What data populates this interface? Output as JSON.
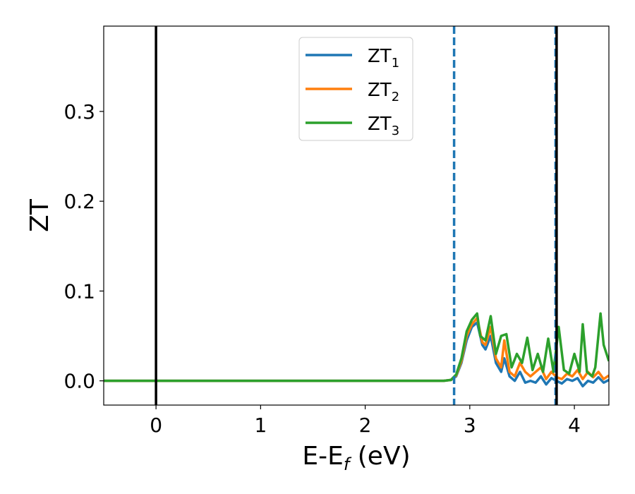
{
  "chart_data": {
    "type": "line",
    "xlabel_main": "E-E",
    "xlabel_sub": "f",
    "xlabel_unit": " (eV)",
    "ylabel": "ZT",
    "xlim": [
      -0.5,
      4.33
    ],
    "ylim": [
      -0.027,
      0.395
    ],
    "xticks": [
      0,
      1,
      2,
      3,
      4
    ],
    "xtick_labels": [
      "0",
      "1",
      "2",
      "3",
      "4"
    ],
    "yticks": [
      0.0,
      0.1,
      0.2,
      0.3
    ],
    "ytick_labels": [
      "0.0",
      "0.1",
      "0.2",
      "0.3"
    ],
    "grid": false,
    "legend_placement": "top-center",
    "series": [
      {
        "name_main": "ZT",
        "name_sub": "1",
        "color": "#1f77b4",
        "x": [
          -0.5,
          2.75,
          2.82,
          2.87,
          2.92,
          2.97,
          3.02,
          3.07,
          3.12,
          3.15,
          3.2,
          3.25,
          3.3,
          3.33,
          3.38,
          3.43,
          3.48,
          3.53,
          3.58,
          3.63,
          3.68,
          3.73,
          3.78,
          3.83,
          3.88,
          3.93,
          3.98,
          4.03,
          4.08,
          4.13,
          4.18,
          4.23,
          4.28,
          4.33
        ],
        "y": [
          0.0,
          0.0,
          0.001,
          0.005,
          0.02,
          0.045,
          0.06,
          0.065,
          0.04,
          0.035,
          0.05,
          0.02,
          0.01,
          0.025,
          0.005,
          0.0,
          0.01,
          -0.002,
          0.0,
          -0.002,
          0.005,
          -0.004,
          0.003,
          0.0,
          -0.003,
          0.002,
          0.0,
          0.003,
          -0.006,
          0.0,
          -0.002,
          0.004,
          -0.002,
          0.001
        ]
      },
      {
        "name_main": "ZT",
        "name_sub": "2",
        "color": "#ff7f0e",
        "x": [
          -0.5,
          2.75,
          2.82,
          2.87,
          2.92,
          2.97,
          3.02,
          3.07,
          3.12,
          3.15,
          3.2,
          3.25,
          3.3,
          3.33,
          3.38,
          3.43,
          3.48,
          3.53,
          3.58,
          3.63,
          3.68,
          3.73,
          3.78,
          3.83,
          3.88,
          3.93,
          3.98,
          4.03,
          4.08,
          4.13,
          4.18,
          4.23,
          4.28,
          4.33
        ],
        "y": [
          0.0,
          0.0,
          0.001,
          0.006,
          0.022,
          0.05,
          0.063,
          0.07,
          0.043,
          0.04,
          0.06,
          0.025,
          0.015,
          0.045,
          0.01,
          0.005,
          0.02,
          0.01,
          0.005,
          0.01,
          0.015,
          0.002,
          0.01,
          0.004,
          0.002,
          0.008,
          0.005,
          0.012,
          0.002,
          0.01,
          0.004,
          0.01,
          0.002,
          0.006
        ]
      },
      {
        "name_main": "ZT",
        "name_sub": "3",
        "color": "#2ca02c",
        "x": [
          -0.5,
          2.75,
          2.82,
          2.87,
          2.92,
          2.97,
          3.02,
          3.07,
          3.1,
          3.15,
          3.2,
          3.25,
          3.3,
          3.35,
          3.4,
          3.45,
          3.5,
          3.55,
          3.6,
          3.65,
          3.7,
          3.75,
          3.8,
          3.85,
          3.9,
          3.95,
          4.0,
          4.05,
          4.08,
          4.12,
          4.17,
          4.2,
          4.25,
          4.28,
          4.33
        ],
        "y": [
          0.0,
          0.0,
          0.001,
          0.007,
          0.025,
          0.055,
          0.068,
          0.075,
          0.05,
          0.045,
          0.072,
          0.03,
          0.05,
          0.052,
          0.015,
          0.03,
          0.02,
          0.048,
          0.012,
          0.03,
          0.01,
          0.047,
          0.01,
          0.06,
          0.012,
          0.008,
          0.03,
          0.01,
          0.063,
          0.01,
          0.005,
          0.015,
          0.075,
          0.04,
          0.022
        ]
      }
    ],
    "vlines": [
      {
        "x": 0.0,
        "style": "solid",
        "color": "#000000"
      },
      {
        "x": 2.85,
        "style": "dashed",
        "color": "#1f77b4"
      },
      {
        "x": 3.82,
        "style": "dashed",
        "color": "#1f77b4"
      },
      {
        "x": 3.83,
        "style": "solid",
        "color": "#000000"
      }
    ]
  }
}
